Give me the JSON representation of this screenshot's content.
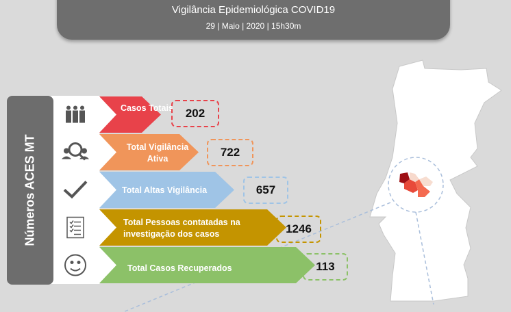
{
  "header": {
    "title": "Vigilância Epidemiológica COVID19",
    "date": "29 | Maio | 2020 | 15h30m"
  },
  "side_label": "Números ACES MT",
  "rows": [
    {
      "label": "Casos Totais",
      "value": "202",
      "color": "#e8424a",
      "icon": "people-group-icon"
    },
    {
      "label": "Total Vigilância Ativa",
      "value": "722",
      "color": "#f0955a",
      "icon": "people-search-icon"
    },
    {
      "label": "Total Altas Vigilância",
      "value": "657",
      "color": "#9fc4e6",
      "icon": "checkmark-icon"
    },
    {
      "label": "Total Pessoas contatadas na investigação dos casos",
      "value": "1246",
      "color": "#c49400",
      "icon": "checklist-icon"
    },
    {
      "label": "Total Casos Recuperados",
      "value": "113",
      "color": "#8cc168",
      "icon": "smiley-icon"
    }
  ]
}
